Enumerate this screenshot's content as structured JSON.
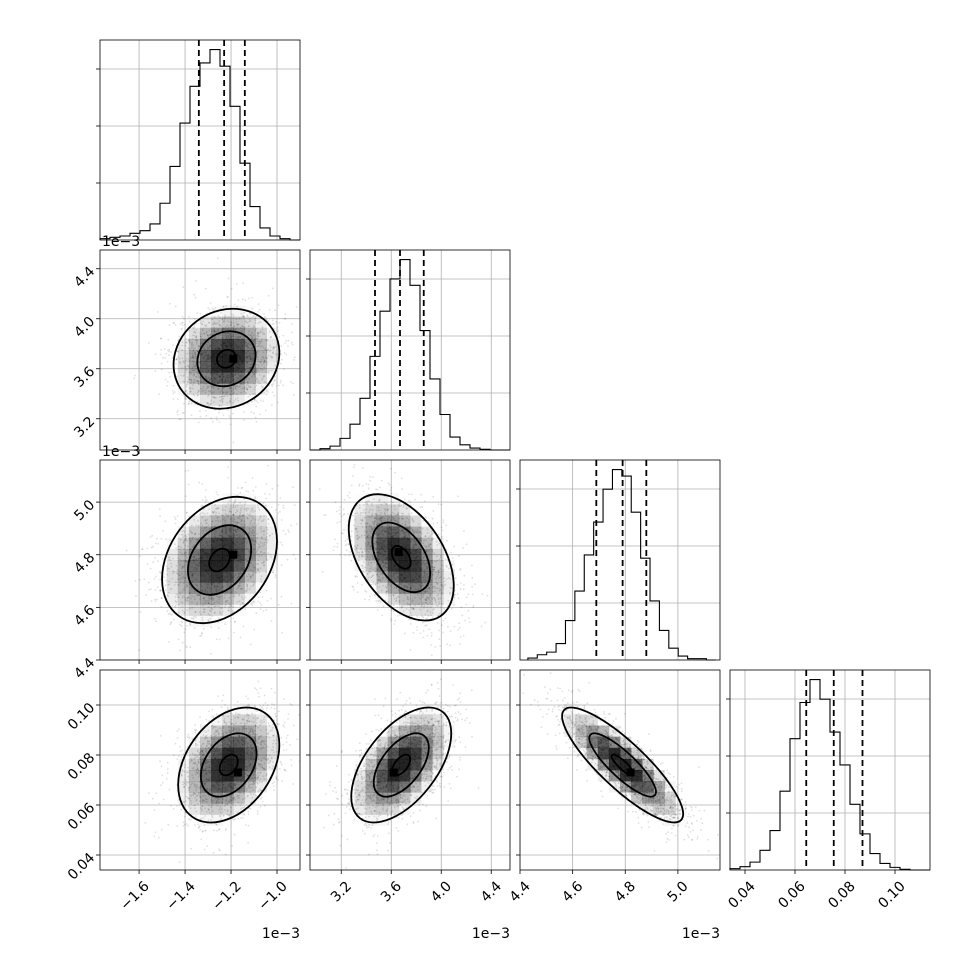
{
  "chart_data": {
    "type": "corner",
    "parameters": [
      {
        "id": "p1",
        "range": [
          -1.77,
          -0.9
        ],
        "ticks": [
          -1.6,
          -1.4,
          -1.2,
          -1.0
        ],
        "tick_labels": [
          "−1.6",
          "−1.4",
          "−1.2",
          "−1.0"
        ],
        "offset_label": "1e−3",
        "quantiles": [
          -1.34,
          -1.23,
          -1.14
        ],
        "hist_edges_start": -1.77,
        "hist_bin_width": 0.0435,
        "hist_counts": [
          2,
          4,
          6,
          10,
          14,
          24,
          55,
          110,
          175,
          230,
          265,
          285,
          260,
          200,
          115,
          50,
          18,
          6,
          2,
          0
        ]
      },
      {
        "id": "p2",
        "range": [
          2.95,
          4.55
        ],
        "ticks": [
          3.2,
          3.6,
          4.0,
          4.4
        ],
        "tick_labels": [
          "3.2",
          "3.6",
          "4.0",
          "4.4"
        ],
        "offset_label": "1e−3",
        "quantiles": [
          3.47,
          3.67,
          3.86
        ],
        "hist_edges_start": 2.95,
        "hist_bin_width": 0.08,
        "hist_counts": [
          0,
          2,
          6,
          18,
          40,
          80,
          145,
          215,
          265,
          295,
          255,
          185,
          110,
          55,
          20,
          8,
          3,
          1,
          0,
          0
        ]
      },
      {
        "id": "p3",
        "range": [
          4.4,
          5.16
        ],
        "ticks": [
          4.4,
          4.6,
          4.8,
          5.0
        ],
        "tick_labels": [
          "4.4",
          "4.6",
          "4.8",
          "5.0"
        ],
        "offset_label": "1e−3",
        "quantiles": [
          4.69,
          4.79,
          4.88
        ],
        "hist_edges_start": 4.43,
        "hist_bin_width": 0.0357,
        "hist_counts": [
          3,
          8,
          12,
          25,
          60,
          105,
          160,
          210,
          260,
          290,
          280,
          225,
          155,
          90,
          45,
          18,
          6,
          2,
          2,
          0
        ]
      },
      {
        "id": "p4",
        "range": [
          0.034,
          0.114
        ],
        "ticks": [
          0.04,
          0.06,
          0.08,
          0.1
        ],
        "tick_labels": [
          "0.04",
          "0.06",
          "0.08",
          "0.10"
        ],
        "offset_label": "",
        "quantiles": [
          0.0645,
          0.0755,
          0.087
        ],
        "hist_edges_start": 0.034,
        "hist_bin_width": 0.004,
        "hist_counts": [
          2,
          5,
          12,
          30,
          60,
          120,
          200,
          255,
          290,
          260,
          210,
          160,
          100,
          55,
          25,
          10,
          4,
          1,
          0,
          0
        ]
      }
    ],
    "pairs": [
      {
        "x": 0,
        "y": 1,
        "mean": [
          -1.22,
          3.68
        ],
        "sd": [
          0.115,
          0.2
        ],
        "corr": 0.12,
        "peak": [
          -1.19,
          3.68
        ],
        "contour_levels": [
          1.0,
          0.55,
          0.18
        ]
      },
      {
        "x": 0,
        "y": 2,
        "mean": [
          -1.25,
          4.78
        ],
        "sd": [
          0.125,
          0.12
        ],
        "corr": 0.3,
        "peak": [
          -1.19,
          4.8
        ],
        "contour_levels": [
          1.0,
          0.55,
          0.18
        ]
      },
      {
        "x": 1,
        "y": 2,
        "mean": [
          3.68,
          4.79
        ],
        "sd": [
          0.21,
          0.12
        ],
        "corr": -0.45,
        "peak": [
          3.66,
          4.81
        ],
        "contour_levels": [
          1.0,
          0.55,
          0.18
        ]
      },
      {
        "x": 0,
        "y": 3,
        "mean": [
          -1.21,
          0.076
        ],
        "sd": [
          0.11,
          0.0115
        ],
        "corr": 0.35,
        "peak": [
          -1.17,
          0.073
        ],
        "contour_levels": [
          1.0,
          0.55,
          0.18
        ]
      },
      {
        "x": 1,
        "y": 3,
        "mean": [
          3.68,
          0.076
        ],
        "sd": [
          0.2,
          0.0115
        ],
        "corr": 0.55,
        "peak": [
          3.62,
          0.073
        ],
        "contour_levels": [
          1.0,
          0.55,
          0.18
        ]
      },
      {
        "x": 2,
        "y": 3,
        "mean": [
          4.79,
          0.076
        ],
        "sd": [
          0.115,
          0.0115
        ],
        "corr": -0.85,
        "peak": [
          4.82,
          0.073
        ],
        "contour_levels": [
          1.0,
          0.55,
          0.18
        ]
      }
    ],
    "grid": true,
    "legend": "none"
  }
}
